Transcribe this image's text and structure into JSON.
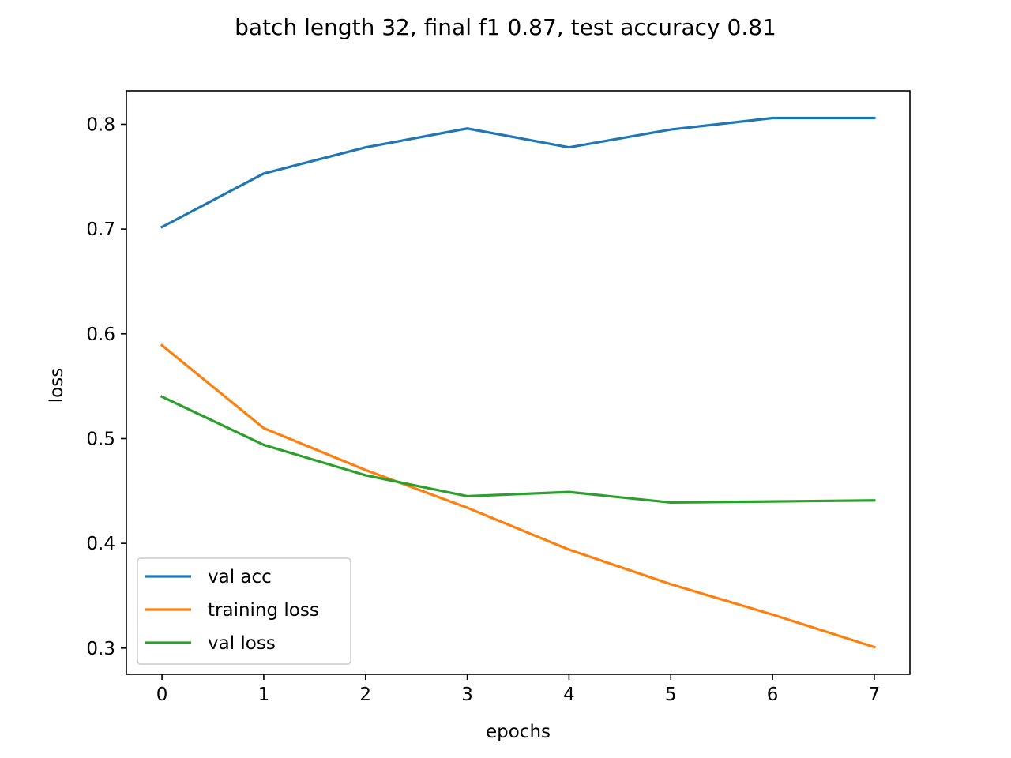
{
  "chart_data": {
    "type": "line",
    "title": "batch length 32, final f1 0.87, test accuracy 0.81",
    "xlabel": "epochs",
    "ylabel": "loss",
    "x": [
      0,
      1,
      2,
      3,
      4,
      5,
      6,
      7
    ],
    "xlim": [
      -0.35,
      7.35
    ],
    "ylim": [
      0.275,
      0.832
    ],
    "xticks": [
      0,
      1,
      2,
      3,
      4,
      5,
      6,
      7
    ],
    "yticks": [
      0.3,
      0.4,
      0.5,
      0.6,
      0.7,
      0.8
    ],
    "grid": false,
    "legend_position": "lower-left",
    "series": [
      {
        "name": "val acc",
        "color": "#1f77b4",
        "values": [
          0.702,
          0.753,
          0.778,
          0.796,
          0.778,
          0.795,
          0.806,
          0.806
        ]
      },
      {
        "name": "training loss",
        "color": "#ff7f0e",
        "values": [
          0.589,
          0.51,
          0.47,
          0.434,
          0.394,
          0.361,
          0.332,
          0.301
        ]
      },
      {
        "name": "val loss",
        "color": "#2ca02c",
        "values": [
          0.54,
          0.494,
          0.465,
          0.445,
          0.449,
          0.439,
          0.44,
          0.441
        ]
      }
    ]
  }
}
